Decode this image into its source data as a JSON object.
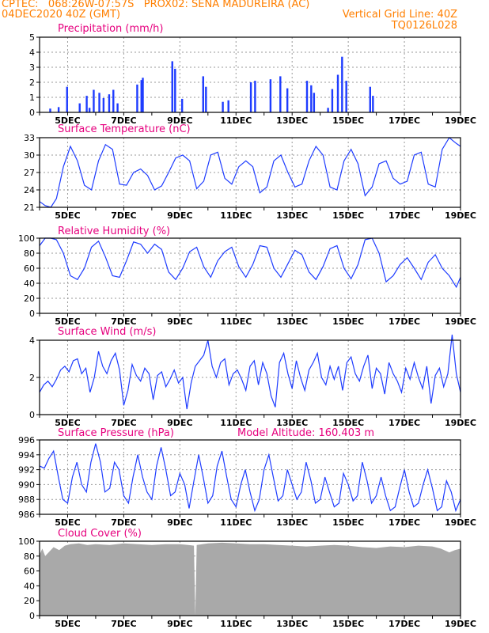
{
  "header": {
    "line1_left": "CPTEC:   068:26W-07:57S   PROX02: SENA MADUREIRA (AC)",
    "line2_left": "04DEC2020 40Z (GMT)",
    "line2_right": "Vertical Grid Line: 40Z",
    "line3_right": "TQ0126L028"
  },
  "colors": {
    "header": "#ff7f00",
    "title": "#e6007e",
    "line": "#1e3cff",
    "cloud": "#a9a9a9",
    "grid": "#999999"
  },
  "x_labels": [
    "5DEC",
    "7DEC",
    "9DEC",
    "11DEC",
    "13DEC",
    "15DEC",
    "17DEC",
    "19DEC"
  ],
  "chart_data": [
    {
      "id": "precip",
      "type": "bar",
      "title": "Precipitation (mm/h)",
      "ylim": [
        0,
        5
      ],
      "yticks": [
        "0",
        "1",
        "2",
        "3",
        "4",
        "5"
      ],
      "x_range_days": [
        4.0,
        19.0
      ],
      "grid": true,
      "values": [
        [
          4.38,
          0.25
        ],
        [
          4.68,
          0.35
        ],
        [
          4.98,
          1.7
        ],
        [
          5.43,
          0.6
        ],
        [
          5.68,
          1.1
        ],
        [
          5.78,
          0.3
        ],
        [
          5.93,
          1.5
        ],
        [
          6.13,
          1.3
        ],
        [
          6.28,
          0.95
        ],
        [
          6.48,
          1.2
        ],
        [
          6.63,
          1.5
        ],
        [
          6.78,
          0.6
        ],
        [
          7.48,
          1.85
        ],
        [
          7.63,
          2.15
        ],
        [
          7.68,
          2.3
        ],
        [
          8.73,
          3.4
        ],
        [
          8.83,
          2.9
        ],
        [
          9.08,
          0.9
        ],
        [
          9.83,
          2.4
        ],
        [
          9.93,
          1.7
        ],
        [
          10.53,
          0.7
        ],
        [
          10.73,
          0.8
        ],
        [
          11.53,
          2.0
        ],
        [
          11.68,
          2.1
        ],
        [
          12.23,
          2.2
        ],
        [
          12.58,
          2.4
        ],
        [
          12.83,
          1.6
        ],
        [
          13.53,
          2.1
        ],
        [
          13.68,
          1.8
        ],
        [
          13.78,
          1.3
        ],
        [
          14.28,
          0.3
        ],
        [
          14.43,
          1.55
        ],
        [
          14.63,
          2.5
        ],
        [
          14.78,
          3.7
        ],
        [
          14.93,
          2.1
        ],
        [
          15.78,
          1.7
        ],
        [
          15.88,
          1.1
        ]
      ]
    },
    {
      "id": "temp",
      "type": "line",
      "title": "Surface Temperature (nC)",
      "ylim": [
        21,
        33
      ],
      "yticks": [
        "21",
        "24",
        "27",
        "30",
        "33"
      ],
      "x_range_days": [
        4.0,
        19.0
      ],
      "grid": true,
      "x": [
        4.0,
        4.2,
        4.4,
        4.6,
        4.85,
        5.1,
        5.35,
        5.6,
        5.85,
        6.1,
        6.35,
        6.6,
        6.85,
        7.1,
        7.35,
        7.6,
        7.85,
        8.1,
        8.35,
        8.6,
        8.85,
        9.1,
        9.35,
        9.6,
        9.85,
        10.1,
        10.35,
        10.6,
        10.85,
        11.1,
        11.35,
        11.6,
        11.85,
        12.1,
        12.35,
        12.6,
        12.85,
        13.1,
        13.35,
        13.6,
        13.85,
        14.1,
        14.35,
        14.6,
        14.85,
        15.1,
        15.35,
        15.6,
        15.85,
        16.1,
        16.35,
        16.6,
        16.85,
        17.1,
        17.35,
        17.6,
        17.85,
        18.1,
        18.35,
        18.6,
        18.85,
        19.0
      ],
      "y": [
        22,
        21.3,
        21,
        22.5,
        28,
        31.5,
        29,
        24.8,
        24,
        29,
        31.8,
        31,
        25,
        24.8,
        27,
        27.6,
        26.5,
        24,
        24.7,
        27,
        29.5,
        30,
        29,
        24.2,
        25.5,
        30,
        30.5,
        26,
        25,
        28,
        29,
        28,
        23.5,
        24.5,
        29,
        30,
        27,
        24.5,
        25,
        29,
        31.5,
        30,
        24.5,
        24,
        29,
        31,
        28.5,
        23,
        24.5,
        28.5,
        29,
        26,
        25,
        25.5,
        30,
        30.5,
        25,
        24.5,
        31,
        33,
        32,
        31.5
      ]
    },
    {
      "id": "rh",
      "type": "line",
      "title": "Relative Humidity (%)",
      "ylim": [
        0,
        100
      ],
      "yticks": [
        "0",
        "20",
        "40",
        "60",
        "80",
        "100"
      ],
      "x_range_days": [
        4.0,
        19.0
      ],
      "grid": true,
      "x": [
        4.0,
        4.2,
        4.4,
        4.6,
        4.85,
        5.1,
        5.35,
        5.6,
        5.85,
        6.1,
        6.35,
        6.6,
        6.85,
        7.1,
        7.35,
        7.6,
        7.85,
        8.1,
        8.35,
        8.6,
        8.85,
        9.1,
        9.35,
        9.6,
        9.85,
        10.1,
        10.35,
        10.6,
        10.85,
        11.1,
        11.35,
        11.6,
        11.85,
        12.1,
        12.35,
        12.6,
        12.85,
        13.1,
        13.35,
        13.6,
        13.85,
        14.1,
        14.35,
        14.6,
        14.85,
        15.1,
        15.35,
        15.6,
        15.85,
        16.1,
        16.35,
        16.6,
        16.85,
        17.1,
        17.35,
        17.6,
        17.85,
        18.1,
        18.35,
        18.6,
        18.85,
        19.0
      ],
      "y": [
        90,
        100,
        100,
        98,
        80,
        50,
        45,
        60,
        88,
        96,
        75,
        50,
        48,
        70,
        95,
        92,
        80,
        92,
        85,
        55,
        45,
        60,
        82,
        88,
        62,
        48,
        70,
        82,
        88,
        62,
        48,
        65,
        90,
        88,
        60,
        48,
        66,
        84,
        78,
        55,
        45,
        62,
        86,
        90,
        60,
        46,
        65,
        98,
        100,
        80,
        42,
        50,
        65,
        74,
        60,
        45,
        68,
        78,
        60,
        50,
        35,
        48
      ]
    },
    {
      "id": "wind",
      "type": "line",
      "title": "Surface Wind (m/s)",
      "ylim": [
        0,
        4
      ],
      "yticks": [
        "0",
        "2",
        "4"
      ],
      "x_range_days": [
        4.0,
        19.0
      ],
      "grid": true,
      "x": [
        4.0,
        4.15,
        4.3,
        4.45,
        4.6,
        4.75,
        4.9,
        5.05,
        5.2,
        5.35,
        5.5,
        5.65,
        5.8,
        5.95,
        6.1,
        6.25,
        6.4,
        6.55,
        6.7,
        6.85,
        7.0,
        7.15,
        7.3,
        7.45,
        7.6,
        7.75,
        7.9,
        8.05,
        8.2,
        8.35,
        8.5,
        8.65,
        8.8,
        8.95,
        9.1,
        9.25,
        9.4,
        9.55,
        9.7,
        9.85,
        10.0,
        10.15,
        10.3,
        10.45,
        10.6,
        10.75,
        10.9,
        11.05,
        11.2,
        11.35,
        11.5,
        11.65,
        11.8,
        11.95,
        12.1,
        12.25,
        12.4,
        12.55,
        12.7,
        12.85,
        13.0,
        13.15,
        13.3,
        13.45,
        13.6,
        13.75,
        13.9,
        14.05,
        14.2,
        14.35,
        14.5,
        14.65,
        14.8,
        14.95,
        15.1,
        15.25,
        15.4,
        15.55,
        15.7,
        15.85,
        16.0,
        16.15,
        16.3,
        16.45,
        16.6,
        16.75,
        16.9,
        17.05,
        17.2,
        17.35,
        17.5,
        17.65,
        17.8,
        17.95,
        18.1,
        18.25,
        18.4,
        18.55,
        18.7,
        18.85,
        19.0
      ],
      "y": [
        1.2,
        1.6,
        1.8,
        1.5,
        1.9,
        2.4,
        2.6,
        2.3,
        2.9,
        3.0,
        2.2,
        2.5,
        1.2,
        2.0,
        3.4,
        2.6,
        2.2,
        2.9,
        3.3,
        2.4,
        0.5,
        1.3,
        2.7,
        2.1,
        1.8,
        2.5,
        2.2,
        0.8,
        2.1,
        2.3,
        1.5,
        1.9,
        2.4,
        1.7,
        2.0,
        0.3,
        1.7,
        2.6,
        2.9,
        3.2,
        4.0,
        2.6,
        2.0,
        2.8,
        3.0,
        1.6,
        2.2,
        2.4,
        1.9,
        1.3,
        2.6,
        2.9,
        1.6,
        2.8,
        2.2,
        1.0,
        0.4,
        2.8,
        3.3,
        2.2,
        1.4,
        2.9,
        2.0,
        1.3,
        2.4,
        2.8,
        3.3,
        2.0,
        1.6,
        2.6,
        1.9,
        2.6,
        1.3,
        2.8,
        3.1,
        2.2,
        1.8,
        2.6,
        3.2,
        1.4,
        2.5,
        2.2,
        1.1,
        2.8,
        2.2,
        1.8,
        1.2,
        2.5,
        1.9,
        2.8,
        2.0,
        1.4,
        2.6,
        0.6,
        2.1,
        2.5,
        1.5,
        2.2,
        4.3,
        2.2,
        1.2
      ]
    },
    {
      "id": "pressure",
      "type": "line",
      "title": "Surface Pressure (hPa)",
      "annotation": "Model Altitude: 160.403 m",
      "ylim": [
        986,
        996
      ],
      "yticks": [
        "986",
        "988",
        "990",
        "992",
        "994",
        "996"
      ],
      "x_range_days": [
        4.0,
        19.0
      ],
      "grid": true,
      "x": [
        4.0,
        4.17,
        4.33,
        4.5,
        4.67,
        4.83,
        5.0,
        5.17,
        5.33,
        5.5,
        5.67,
        5.83,
        6.0,
        6.17,
        6.33,
        6.5,
        6.67,
        6.83,
        7.0,
        7.17,
        7.33,
        7.5,
        7.67,
        7.83,
        8.0,
        8.17,
        8.33,
        8.5,
        8.67,
        8.83,
        9.0,
        9.17,
        9.33,
        9.5,
        9.67,
        9.83,
        10.0,
        10.17,
        10.33,
        10.5,
        10.67,
        10.83,
        11.0,
        11.17,
        11.33,
        11.5,
        11.67,
        11.83,
        12.0,
        12.17,
        12.33,
        12.5,
        12.67,
        12.83,
        13.0,
        13.17,
        13.33,
        13.5,
        13.67,
        13.83,
        14.0,
        14.17,
        14.33,
        14.5,
        14.67,
        14.83,
        15.0,
        15.17,
        15.33,
        15.5,
        15.67,
        15.83,
        16.0,
        16.17,
        16.33,
        16.5,
        16.67,
        16.83,
        17.0,
        17.17,
        17.33,
        17.5,
        17.67,
        17.83,
        18.0,
        18.17,
        18.33,
        18.5,
        18.67,
        18.83,
        19.0
      ],
      "y": [
        992.5,
        992.2,
        993.5,
        994.5,
        991,
        988,
        987.5,
        991,
        993,
        990,
        989,
        993,
        995.5,
        993,
        989,
        989.5,
        993,
        992,
        988.5,
        987.5,
        991,
        994,
        991,
        989,
        988,
        992.5,
        995,
        992,
        988.5,
        989,
        991.5,
        990,
        986.8,
        990.5,
        994,
        991,
        987.5,
        988.5,
        992.5,
        994.5,
        991,
        988,
        987,
        990,
        992,
        989,
        986.5,
        988,
        992,
        994,
        991,
        987.8,
        988.5,
        992,
        990,
        988,
        989,
        993,
        990.5,
        987.5,
        988,
        991,
        989,
        987,
        987.5,
        991.5,
        990,
        987.8,
        988.5,
        993,
        990.5,
        987.5,
        988.5,
        991,
        988.5,
        986.5,
        987,
        989.5,
        992,
        989,
        987,
        987.5,
        990,
        992,
        989.5,
        986.5,
        987,
        990.5,
        989,
        986.5,
        988
      ]
    },
    {
      "id": "cloud",
      "type": "area",
      "title": "Cloud Cover (%)",
      "ylim": [
        0,
        100
      ],
      "yticks": [
        "0",
        "20",
        "40",
        "60",
        "80",
        "100"
      ],
      "x_range_days": [
        4.0,
        19.0
      ],
      "grid": true,
      "x": [
        4.0,
        4.1,
        4.2,
        4.3,
        4.5,
        4.7,
        4.9,
        5.1,
        5.4,
        5.7,
        6.0,
        6.5,
        7.0,
        7.5,
        8.0,
        8.5,
        9.0,
        9.3,
        9.5,
        9.55,
        9.6,
        10.0,
        10.5,
        11.0,
        11.5,
        12.0,
        12.5,
        13.0,
        13.5,
        14.0,
        14.5,
        15.0,
        15.5,
        16.0,
        16.5,
        17.0,
        17.5,
        18.0,
        18.3,
        18.6,
        18.8,
        19.0
      ],
      "y": [
        82,
        90,
        80,
        84,
        92,
        88,
        94,
        96,
        97,
        95,
        96,
        95,
        97,
        96,
        95,
        96,
        96,
        95,
        94,
        0,
        95,
        97,
        98,
        97,
        96,
        96,
        95,
        94,
        93,
        94,
        95,
        94,
        92,
        91,
        93,
        92,
        94,
        93,
        90,
        85,
        88,
        90
      ]
    }
  ]
}
